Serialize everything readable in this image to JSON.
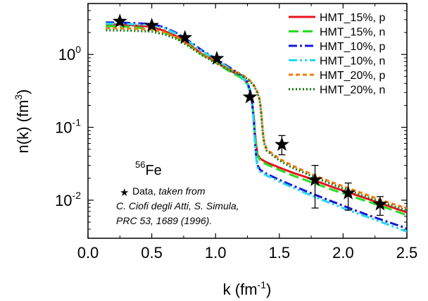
{
  "chart_data": {
    "type": "line",
    "xlabel": "k (fm",
    "xlabel_sup": "-1",
    "xlabel_close": ")",
    "ylabel": "n(k) (fm",
    "ylabel_sup": "3",
    "ylabel_close": ")",
    "xlim": [
      0.0,
      2.5
    ],
    "ylim": [
      0.003,
      5
    ],
    "yscale": "log",
    "x_ticks": [
      0.0,
      0.5,
      1.0,
      1.5,
      2.0,
      2.5
    ],
    "x_tick_labels": [
      "0.0",
      "0.5",
      "1.0",
      "1.5",
      "2.0",
      "2.5"
    ],
    "y_ticks": [
      {
        "value": 1,
        "base": "10",
        "exp": "0"
      },
      {
        "value": 0.1,
        "base": "10",
        "exp": "-1"
      },
      {
        "value": 0.01,
        "base": "10",
        "exp": "-2"
      }
    ],
    "legend_position": "top-right",
    "series": [
      {
        "name": "HMT_15%, p",
        "color": "#e8141e",
        "dash": "solid",
        "x": [
          0.14,
          0.3,
          0.5,
          0.6,
          0.7,
          0.8,
          0.9,
          1.0,
          1.1,
          1.2,
          1.25,
          1.28,
          1.3,
          1.31,
          1.32,
          1.33,
          1.35,
          1.4,
          1.5,
          1.6,
          1.7,
          1.8,
          1.9,
          2.0,
          2.1,
          2.2,
          2.3,
          2.4,
          2.5
        ],
        "y": [
          2.6,
          2.55,
          2.4,
          2.1,
          1.75,
          1.35,
          1.0,
          0.8,
          0.62,
          0.5,
          0.4,
          0.28,
          0.14,
          0.08,
          0.055,
          0.042,
          0.037,
          0.033,
          0.028,
          0.024,
          0.021,
          0.018,
          0.0155,
          0.0135,
          0.0118,
          0.0103,
          0.009,
          0.0078,
          0.0068
        ]
      },
      {
        "name": "HMT_15%, n",
        "color": "#22dd22",
        "dash": "long-dash",
        "x": [
          0.14,
          0.3,
          0.5,
          0.6,
          0.7,
          0.8,
          0.9,
          1.0,
          1.1,
          1.2,
          1.25,
          1.28,
          1.3,
          1.31,
          1.32,
          1.33,
          1.35,
          1.4,
          1.5,
          1.6,
          1.7,
          1.8,
          1.9,
          2.0,
          2.1,
          2.2,
          2.3,
          2.4,
          2.5
        ],
        "y": [
          2.45,
          2.4,
          2.25,
          2.0,
          1.68,
          1.3,
          0.98,
          0.78,
          0.6,
          0.48,
          0.39,
          0.27,
          0.13,
          0.075,
          0.052,
          0.04,
          0.035,
          0.031,
          0.026,
          0.022,
          0.019,
          0.0165,
          0.0142,
          0.0124,
          0.0108,
          0.0095,
          0.0083,
          0.0072,
          0.0062
        ]
      },
      {
        "name": "HMT_10%, p",
        "color": "#1414d8",
        "dash": "dash-dot",
        "x": [
          0.14,
          0.3,
          0.5,
          0.6,
          0.7,
          0.8,
          0.9,
          1.0,
          1.1,
          1.2,
          1.25,
          1.28,
          1.3,
          1.31,
          1.32,
          1.33,
          1.35,
          1.4,
          1.5,
          1.6,
          1.7,
          1.8,
          1.9,
          2.0,
          2.1,
          2.2,
          2.3,
          2.4,
          2.5
        ],
        "y": [
          2.75,
          2.72,
          2.62,
          2.35,
          1.95,
          1.5,
          1.12,
          0.88,
          0.68,
          0.52,
          0.42,
          0.28,
          0.12,
          0.06,
          0.038,
          0.03,
          0.026,
          0.023,
          0.019,
          0.016,
          0.0135,
          0.0115,
          0.0098,
          0.0084,
          0.0072,
          0.0062,
          0.0054,
          0.0047,
          0.0041
        ]
      },
      {
        "name": "HMT_10%, n",
        "color": "#22d8f0",
        "dash": "dash-dot-dot",
        "x": [
          0.14,
          0.3,
          0.5,
          0.6,
          0.7,
          0.8,
          0.9,
          1.0,
          1.1,
          1.2,
          1.25,
          1.28,
          1.3,
          1.31,
          1.32,
          1.33,
          1.35,
          1.4,
          1.5,
          1.6,
          1.7,
          1.8,
          1.9,
          2.0,
          2.1,
          2.2,
          2.3,
          2.4,
          2.5
        ],
        "y": [
          2.65,
          2.62,
          2.52,
          2.28,
          1.9,
          1.46,
          1.09,
          0.86,
          0.66,
          0.5,
          0.41,
          0.27,
          0.115,
          0.058,
          0.036,
          0.028,
          0.0245,
          0.0218,
          0.018,
          0.015,
          0.0126,
          0.0107,
          0.0091,
          0.0078,
          0.0067,
          0.0058,
          0.005,
          0.0043,
          0.0037
        ]
      },
      {
        "name": "HMT_20%, p",
        "color": "#f47a0a",
        "dash": "short-dash",
        "x": [
          0.14,
          0.3,
          0.5,
          0.6,
          0.7,
          0.8,
          0.9,
          1.0,
          1.1,
          1.2,
          1.25,
          1.28,
          1.3,
          1.32,
          1.34,
          1.35,
          1.36,
          1.37,
          1.38,
          1.4,
          1.5,
          1.6,
          1.7,
          1.8,
          1.9,
          2.0,
          2.1,
          2.2,
          2.3,
          2.4,
          2.5
        ],
        "y": [
          2.3,
          2.28,
          2.2,
          2.0,
          1.7,
          1.32,
          1.0,
          0.8,
          0.64,
          0.54,
          0.47,
          0.42,
          0.38,
          0.33,
          0.27,
          0.22,
          0.15,
          0.09,
          0.065,
          0.05,
          0.037,
          0.03,
          0.025,
          0.021,
          0.018,
          0.0155,
          0.0134,
          0.0116,
          0.01,
          0.0088,
          0.0077
        ]
      },
      {
        "name": "HMT_20%, n",
        "color": "#1a7a1a",
        "dash": "dotted",
        "x": [
          0.14,
          0.3,
          0.5,
          0.6,
          0.7,
          0.8,
          0.9,
          1.0,
          1.1,
          1.2,
          1.25,
          1.28,
          1.3,
          1.32,
          1.34,
          1.35,
          1.36,
          1.37,
          1.38,
          1.4,
          1.5,
          1.6,
          1.7,
          1.8,
          1.9,
          2.0,
          2.1,
          2.2,
          2.3,
          2.4,
          2.5
        ],
        "y": [
          2.15,
          2.13,
          2.06,
          1.88,
          1.62,
          1.26,
          0.96,
          0.77,
          0.62,
          0.52,
          0.46,
          0.41,
          0.37,
          0.32,
          0.26,
          0.21,
          0.14,
          0.085,
          0.062,
          0.048,
          0.035,
          0.028,
          0.0235,
          0.0198,
          0.0169,
          0.0145,
          0.0125,
          0.0108,
          0.0094,
          0.0082,
          0.0072
        ]
      }
    ],
    "data_points": {
      "label": "Data",
      "x": [
        0.25,
        0.5,
        0.76,
        1.01,
        1.27,
        1.52,
        1.78,
        2.04,
        2.29
      ],
      "y": [
        2.85,
        2.5,
        1.7,
        0.88,
        0.26,
        0.058,
        0.019,
        0.0125,
        0.0088
      ],
      "err_lo": [
        null,
        null,
        null,
        null,
        null,
        0.042,
        0.0078,
        0.0073,
        0.0062
      ],
      "err_hi": [
        null,
        null,
        null,
        null,
        null,
        0.077,
        0.03,
        0.0172,
        0.0112
      ]
    }
  },
  "annotations": {
    "nucleus_sup": "56",
    "nucleus": "Fe",
    "data_label": "Data, ",
    "data_citation_lead": "taken from",
    "citation_line1": "C. Ciofi degli Atti, S. Simula,",
    "citation_line2": "PRC 53, 1689 (1996)."
  }
}
